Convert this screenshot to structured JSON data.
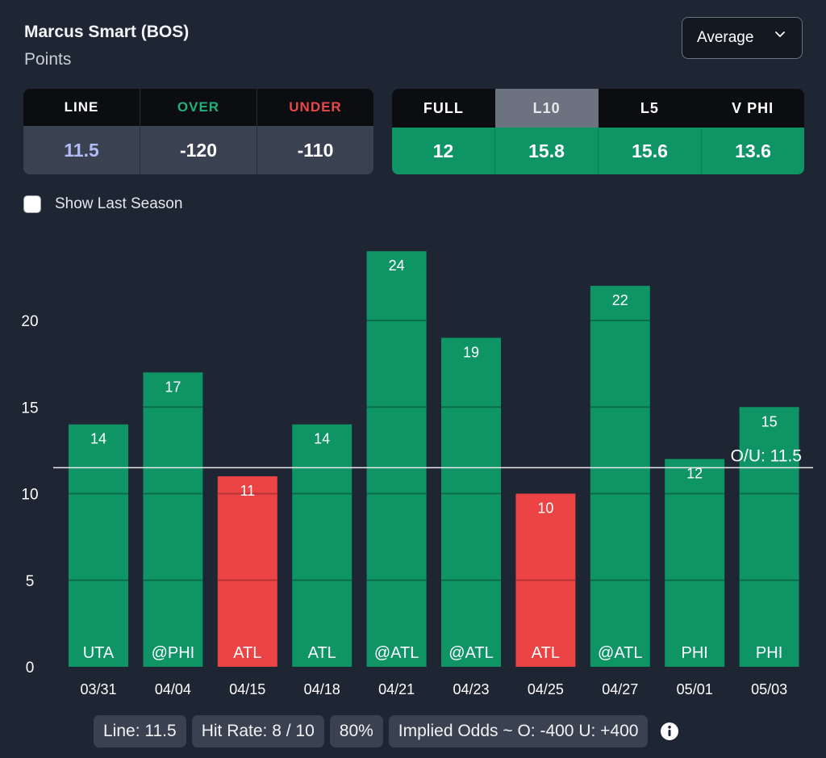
{
  "header": {
    "title": "Marcus Smart (BOS)",
    "subtitle": "Points",
    "dropdown_value": "Average"
  },
  "odds": {
    "headers": [
      "LINE",
      "OVER",
      "UNDER"
    ],
    "header_colors": [
      "#ffffff",
      "#22b07d",
      "#e8484a"
    ],
    "values": [
      "11.5",
      "-120",
      "-110"
    ],
    "value_colors": [
      "#b3bdf5",
      "#ffffff",
      "#ffffff"
    ]
  },
  "averages": {
    "headers": [
      "FULL",
      "L10",
      "L5",
      "V PHI"
    ],
    "active": "L10",
    "values": [
      "12",
      "15.8",
      "15.6",
      "13.6"
    ]
  },
  "show_last_season_label": "Show Last Season",
  "chart_data": {
    "type": "bar",
    "categories": [
      "03/31",
      "04/04",
      "04/15",
      "04/18",
      "04/21",
      "04/23",
      "04/25",
      "04/27",
      "05/01",
      "05/03"
    ],
    "opponents": [
      "UTA",
      "@PHI",
      "ATL",
      "ATL",
      "@ATL",
      "@ATL",
      "ATL",
      "@ATL",
      "PHI",
      "PHI"
    ],
    "values": [
      14,
      17,
      11,
      14,
      24,
      19,
      10,
      22,
      12,
      15
    ],
    "line": 11.5,
    "line_label": "O/U: 11.5",
    "ylim": [
      0,
      25
    ],
    "yticks": [
      0,
      5,
      10,
      15,
      20
    ],
    "colors": {
      "over": "#0e9465",
      "under": "#ec4344",
      "line": "#e8eaee"
    },
    "grid": true
  },
  "footer": {
    "line": "Line: 11.5",
    "hit_rate": "Hit Rate: 8 / 10",
    "percent": "80%",
    "implied_odds": "Implied Odds ~ O: -400 U: +400"
  }
}
